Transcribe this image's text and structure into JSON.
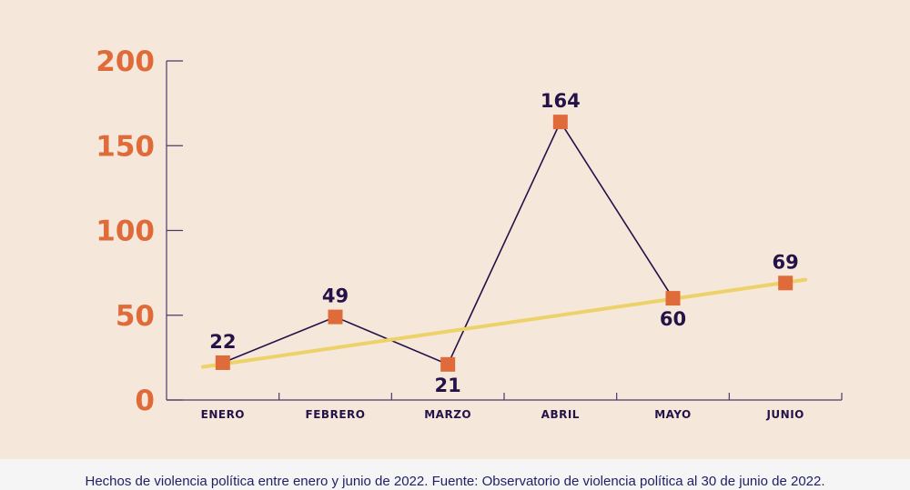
{
  "chart_data": {
    "type": "line",
    "categories": [
      "ENERO",
      "FEBRERO",
      "MARZO",
      "ABRIL",
      "MAYO",
      "JUNIO"
    ],
    "series": [
      {
        "values": [
          22,
          49,
          21,
          164,
          60,
          69
        ]
      }
    ],
    "trendline": {
      "from": 19.5,
      "to": 71
    },
    "yticks": [
      0,
      50,
      100,
      150,
      200
    ],
    "ylim": [
      0,
      200
    ],
    "grid": false,
    "colors": {
      "line": "#241248",
      "marker": "#e06b3a",
      "trend": "#edd26a",
      "ytick": "#e06b3a",
      "axis": "#4a3a6a"
    }
  },
  "caption": "Hechos de violencia política entre enero y junio de 2022. Fuente: Observatorio de violencia política al 30 de junio de 2022."
}
